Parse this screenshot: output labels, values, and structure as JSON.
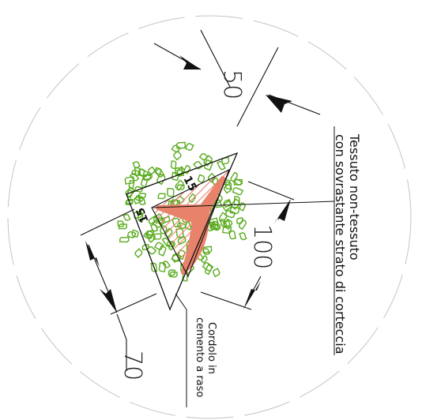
{
  "drawing": {
    "dimensions": {
      "top": "50",
      "right": "100",
      "left": "70",
      "side_a": "15",
      "side_b": "15"
    },
    "notes": {
      "mulch_line1": "Tessuto non-tessuto",
      "mulch_line2": "con sovrastante strato di corteccia",
      "curb_line1": "Cordolo in",
      "curb_line2": "cemento a raso"
    },
    "colors": {
      "shrubs": "#5aab1e",
      "trunk": "#e8826a",
      "hatch": "#e8826a",
      "linework": "#111111",
      "canopy_circle": "#bdbdbd"
    }
  }
}
